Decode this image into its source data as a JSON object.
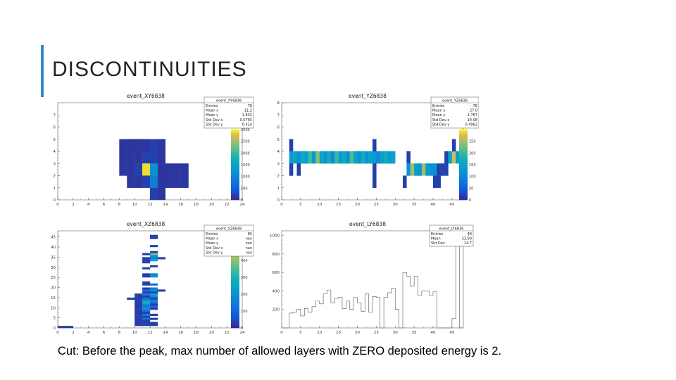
{
  "slide": {
    "title": "DISCONTINUITIES",
    "caption": "Cut: Before the peak, max number of allowed layers with ZERO deposited energy is 2.",
    "accent_color": "#2e8bc9"
  },
  "chart_data": [
    {
      "type": "heatmap",
      "title": "event_XY6838",
      "stats": {
        "name": "event_XY6838",
        "rows": [
          [
            "Entries",
            "78"
          ],
          [
            "Mean x",
            "11.2"
          ],
          [
            "Mean y",
            "1.832"
          ],
          [
            "Std Dev x",
            "0.5765"
          ],
          [
            "Std Dev y",
            "0.414"
          ]
        ]
      },
      "xlim": [
        0,
        24
      ],
      "ylim": [
        0,
        8
      ],
      "xticks": [
        0,
        2,
        4,
        6,
        8,
        10,
        12,
        14,
        16,
        18,
        20,
        22,
        24
      ],
      "yticks": [
        0,
        1,
        2,
        3,
        4,
        5,
        6,
        7
      ],
      "zlim": [
        0,
        3000
      ],
      "colorbar_ticks": [
        0,
        500,
        1000,
        1500,
        2000,
        2500,
        3000
      ],
      "cells": [
        {
          "x": 8,
          "y": 4,
          "v": 120
        },
        {
          "x": 9,
          "y": 4,
          "v": 120
        },
        {
          "x": 10,
          "y": 4,
          "v": 120
        },
        {
          "x": 11,
          "y": 4,
          "v": 120
        },
        {
          "x": 12,
          "y": 4,
          "v": 200
        },
        {
          "x": 13,
          "y": 4,
          "v": 120
        },
        {
          "x": 9,
          "y": 3,
          "v": 120
        },
        {
          "x": 10,
          "y": 3,
          "v": 120
        },
        {
          "x": 11,
          "y": 3,
          "v": 200
        },
        {
          "x": 12,
          "y": 3,
          "v": 200
        },
        {
          "x": 13,
          "y": 3,
          "v": 120
        },
        {
          "x": 9,
          "y": 2,
          "v": 120
        },
        {
          "x": 10,
          "y": 2,
          "v": 200
        },
        {
          "x": 11,
          "y": 2,
          "v": 2900
        },
        {
          "x": 12,
          "y": 2,
          "v": 1200
        },
        {
          "x": 13,
          "y": 2,
          "v": 120
        },
        {
          "x": 14,
          "y": 2,
          "v": 120
        },
        {
          "x": 15,
          "y": 2,
          "v": 120
        },
        {
          "x": 16,
          "y": 2,
          "v": 120
        },
        {
          "x": 9,
          "y": 1,
          "v": 120
        },
        {
          "x": 10,
          "y": 1,
          "v": 120
        },
        {
          "x": 11,
          "y": 1,
          "v": 200
        },
        {
          "x": 12,
          "y": 1,
          "v": 900
        },
        {
          "x": 13,
          "y": 1,
          "v": 120
        },
        {
          "x": 14,
          "y": 1,
          "v": 120
        },
        {
          "x": 15,
          "y": 1,
          "v": 120
        },
        {
          "x": 16,
          "y": 1,
          "v": 120
        },
        {
          "x": 12,
          "y": 0,
          "v": 200
        },
        {
          "x": 13,
          "y": 0,
          "v": 120
        },
        {
          "x": 8,
          "y": 3,
          "v": 120
        },
        {
          "x": 8,
          "y": 2,
          "v": 120
        },
        {
          "x": 10,
          "y": 4,
          "v": 120
        }
      ]
    },
    {
      "type": "heatmap",
      "title": "event_YZ6838",
      "stats": {
        "name": "event_YZ6838",
        "rows": [
          [
            "Entries",
            "78"
          ],
          [
            "Mean x",
            "27.0"
          ],
          [
            "Mean y",
            "1.767"
          ],
          [
            "Std Dev x",
            "14.08"
          ],
          [
            "Std Dev y",
            "0.4962"
          ]
        ]
      },
      "xlim": [
        0,
        48
      ],
      "ylim": [
        0,
        8
      ],
      "xticks": [
        0,
        5,
        10,
        15,
        20,
        25,
        30,
        35,
        40,
        45
      ],
      "yticks": [
        0,
        1,
        2,
        3,
        4,
        5,
        6,
        7,
        8
      ],
      "zlim": [
        0,
        300
      ],
      "colorbar_ticks": [
        0,
        50,
        100,
        150,
        200,
        250
      ],
      "cells": [
        {
          "x": 2,
          "y": 4,
          "v": 20
        },
        {
          "x": 2,
          "y": 3,
          "v": 130
        },
        {
          "x": 3,
          "y": 3,
          "v": 150
        },
        {
          "x": 4,
          "y": 3,
          "v": 120
        },
        {
          "x": 5,
          "y": 3,
          "v": 160
        },
        {
          "x": 6,
          "y": 3,
          "v": 140
        },
        {
          "x": 7,
          "y": 3,
          "v": 200
        },
        {
          "x": 8,
          "y": 3,
          "v": 130
        },
        {
          "x": 9,
          "y": 3,
          "v": 240
        },
        {
          "x": 10,
          "y": 3,
          "v": 150
        },
        {
          "x": 11,
          "y": 3,
          "v": 120
        },
        {
          "x": 12,
          "y": 3,
          "v": 170
        },
        {
          "x": 13,
          "y": 3,
          "v": 110
        },
        {
          "x": 14,
          "y": 3,
          "v": 200
        },
        {
          "x": 15,
          "y": 3,
          "v": 130
        },
        {
          "x": 16,
          "y": 3,
          "v": 160
        },
        {
          "x": 17,
          "y": 3,
          "v": 120
        },
        {
          "x": 18,
          "y": 3,
          "v": 210
        },
        {
          "x": 19,
          "y": 3,
          "v": 150
        },
        {
          "x": 20,
          "y": 3,
          "v": 120
        },
        {
          "x": 21,
          "y": 3,
          "v": 170
        },
        {
          "x": 22,
          "y": 3,
          "v": 120
        },
        {
          "x": 23,
          "y": 3,
          "v": 150
        },
        {
          "x": 24,
          "y": 3,
          "v": 130
        },
        {
          "x": 25,
          "y": 3,
          "v": 110
        },
        {
          "x": 26,
          "y": 3,
          "v": 140
        },
        {
          "x": 27,
          "y": 3,
          "v": 160
        },
        {
          "x": 28,
          "y": 3,
          "v": 130
        },
        {
          "x": 29,
          "y": 3,
          "v": 150
        },
        {
          "x": 2,
          "y": 2,
          "v": 20
        },
        {
          "x": 24,
          "y": 4,
          "v": 20
        },
        {
          "x": 24,
          "y": 2,
          "v": 20
        },
        {
          "x": 24,
          "y": 1,
          "v": 20
        },
        {
          "x": 4,
          "y": 2,
          "v": 20
        },
        {
          "x": 33,
          "y": 3,
          "v": 20
        },
        {
          "x": 32,
          "y": 1,
          "v": 20
        },
        {
          "x": 33,
          "y": 2,
          "v": 120
        },
        {
          "x": 34,
          "y": 2,
          "v": 250
        },
        {
          "x": 35,
          "y": 2,
          "v": 140
        },
        {
          "x": 36,
          "y": 2,
          "v": 120
        },
        {
          "x": 37,
          "y": 2,
          "v": 250
        },
        {
          "x": 38,
          "y": 2,
          "v": 130
        },
        {
          "x": 39,
          "y": 2,
          "v": 120
        },
        {
          "x": 40,
          "y": 2,
          "v": 120
        },
        {
          "x": 41,
          "y": 2,
          "v": 20
        },
        {
          "x": 40,
          "y": 1,
          "v": 20
        },
        {
          "x": 41,
          "y": 1,
          "v": 20
        },
        {
          "x": 43,
          "y": 3,
          "v": 20
        },
        {
          "x": 44,
          "y": 3,
          "v": 150
        },
        {
          "x": 45,
          "y": 3,
          "v": 270
        },
        {
          "x": 46,
          "y": 3,
          "v": 130
        },
        {
          "x": 45,
          "y": 4,
          "v": 20
        },
        {
          "x": 42,
          "y": 2,
          "v": 20
        },
        {
          "x": 43,
          "y": 2,
          "v": 20
        }
      ]
    },
    {
      "type": "heatmap",
      "title": "event_XZ6838",
      "stats": {
        "name": "event_XZ6838",
        "rows": [
          [
            "Entries",
            "85"
          ],
          [
            "Mean x",
            "nan"
          ],
          [
            "Mean y",
            "nan"
          ],
          [
            "Std Dev x",
            "nan"
          ],
          [
            "Std Dev y",
            "nan"
          ]
        ]
      },
      "xlim": [
        0,
        24
      ],
      "ylim": [
        0,
        48
      ],
      "xticks": [
        0,
        2,
        4,
        6,
        8,
        10,
        12,
        14,
        16,
        18,
        20,
        22,
        24
      ],
      "yticks": [
        0,
        5,
        10,
        15,
        20,
        25,
        30,
        35,
        40,
        45
      ],
      "zlim": [
        0,
        500
      ],
      "colorbar_ticks": [
        0,
        100,
        200,
        300,
        400
      ],
      "cells": [
        {
          "x": 0,
          "y": 0,
          "v": 30
        },
        {
          "x": 1,
          "y": 0,
          "v": 30
        },
        {
          "x": 12,
          "y": 45,
          "v": 30
        },
        {
          "x": 12,
          "y": 44,
          "v": 30
        },
        {
          "x": 12,
          "y": 40,
          "v": 30
        },
        {
          "x": 12,
          "y": 37,
          "v": 30
        },
        {
          "x": 12,
          "y": 36,
          "v": 380
        },
        {
          "x": 12,
          "y": 35,
          "v": 200
        },
        {
          "x": 12,
          "y": 34,
          "v": 150
        },
        {
          "x": 12,
          "y": 33,
          "v": 250
        },
        {
          "x": 11,
          "y": 36,
          "v": 30
        },
        {
          "x": 11,
          "y": 34,
          "v": 30
        },
        {
          "x": 13,
          "y": 34,
          "v": 30
        },
        {
          "x": 11,
          "y": 33,
          "v": 30
        },
        {
          "x": 11,
          "y": 32,
          "v": 30
        },
        {
          "x": 12,
          "y": 30,
          "v": 30
        },
        {
          "x": 11,
          "y": 29,
          "v": 30
        },
        {
          "x": 11,
          "y": 26,
          "v": 30
        },
        {
          "x": 12,
          "y": 26,
          "v": 150
        },
        {
          "x": 11,
          "y": 25,
          "v": 30
        },
        {
          "x": 12,
          "y": 25,
          "v": 200
        },
        {
          "x": 11,
          "y": 22,
          "v": 30
        },
        {
          "x": 12,
          "y": 21,
          "v": 120
        },
        {
          "x": 11,
          "y": 21,
          "v": 30
        },
        {
          "x": 11,
          "y": 19,
          "v": 30
        },
        {
          "x": 12,
          "y": 19,
          "v": 150
        },
        {
          "x": 11,
          "y": 18,
          "v": 120
        },
        {
          "x": 12,
          "y": 18,
          "v": 200
        },
        {
          "x": 13,
          "y": 18,
          "v": 30
        },
        {
          "x": 11,
          "y": 17,
          "v": 30
        },
        {
          "x": 12,
          "y": 17,
          "v": 30
        },
        {
          "x": 10,
          "y": 16,
          "v": 30
        },
        {
          "x": 11,
          "y": 16,
          "v": 150
        },
        {
          "x": 12,
          "y": 16,
          "v": 250
        },
        {
          "x": 10,
          "y": 15,
          "v": 30
        },
        {
          "x": 11,
          "y": 15,
          "v": 30
        },
        {
          "x": 12,
          "y": 15,
          "v": 180
        },
        {
          "x": 9,
          "y": 14,
          "v": 30
        },
        {
          "x": 10,
          "y": 14,
          "v": 30
        },
        {
          "x": 11,
          "y": 14,
          "v": 120
        },
        {
          "x": 12,
          "y": 14,
          "v": 30
        },
        {
          "x": 10,
          "y": 13,
          "v": 30
        },
        {
          "x": 11,
          "y": 13,
          "v": 200
        },
        {
          "x": 12,
          "y": 13,
          "v": 150
        },
        {
          "x": 10,
          "y": 12,
          "v": 30
        },
        {
          "x": 11,
          "y": 12,
          "v": 300
        },
        {
          "x": 12,
          "y": 12,
          "v": 120
        },
        {
          "x": 10,
          "y": 11,
          "v": 30
        },
        {
          "x": 11,
          "y": 11,
          "v": 180
        },
        {
          "x": 12,
          "y": 11,
          "v": 30
        },
        {
          "x": 10,
          "y": 10,
          "v": 30
        },
        {
          "x": 11,
          "y": 10,
          "v": 150
        },
        {
          "x": 12,
          "y": 10,
          "v": 120
        },
        {
          "x": 10,
          "y": 9,
          "v": 30
        },
        {
          "x": 11,
          "y": 9,
          "v": 200
        },
        {
          "x": 12,
          "y": 9,
          "v": 30
        },
        {
          "x": 10,
          "y": 8,
          "v": 30
        },
        {
          "x": 11,
          "y": 8,
          "v": 120
        },
        {
          "x": 10,
          "y": 7,
          "v": 30
        },
        {
          "x": 11,
          "y": 7,
          "v": 30
        },
        {
          "x": 10,
          "y": 6,
          "v": 30
        },
        {
          "x": 11,
          "y": 6,
          "v": 150
        },
        {
          "x": 12,
          "y": 6,
          "v": 30
        },
        {
          "x": 10,
          "y": 5,
          "v": 30
        },
        {
          "x": 11,
          "y": 5,
          "v": 30
        },
        {
          "x": 10,
          "y": 4,
          "v": 30
        },
        {
          "x": 11,
          "y": 4,
          "v": 120
        },
        {
          "x": 12,
          "y": 4,
          "v": 30
        },
        {
          "x": 10,
          "y": 3,
          "v": 30
        },
        {
          "x": 11,
          "y": 3,
          "v": 30
        },
        {
          "x": 10,
          "y": 2,
          "v": 30
        },
        {
          "x": 11,
          "y": 2,
          "v": 30
        },
        {
          "x": 12,
          "y": 2,
          "v": 30
        },
        {
          "x": 10,
          "y": 1,
          "v": 30
        },
        {
          "x": 11,
          "y": 1,
          "v": 30
        },
        {
          "x": 12,
          "y": 1,
          "v": 30
        }
      ]
    },
    {
      "type": "line",
      "title": "event_LY6838",
      "stats": {
        "name": "event_LY6838",
        "rows": [
          [
            "Entries",
            "48"
          ],
          [
            "Mean",
            "33.90"
          ],
          [
            "Std Dev",
            "14.7"
          ]
        ]
      },
      "xlim": [
        0,
        48
      ],
      "ylim": [
        0,
        1050
      ],
      "xticks": [
        0,
        5,
        10,
        15,
        20,
        25,
        30,
        35,
        40,
        45
      ],
      "yticks": [
        200,
        400,
        600,
        800,
        1000
      ],
      "values": [
        0,
        0,
        160,
        170,
        200,
        130,
        210,
        170,
        230,
        290,
        260,
        370,
        410,
        270,
        320,
        330,
        210,
        290,
        200,
        330,
        270,
        180,
        370,
        170,
        340,
        330,
        0,
        330,
        380,
        430,
        200,
        0,
        600,
        560,
        450,
        560,
        350,
        400,
        400,
        350,
        390,
        0,
        0,
        0,
        0,
        100,
        1000,
        0
      ]
    }
  ]
}
